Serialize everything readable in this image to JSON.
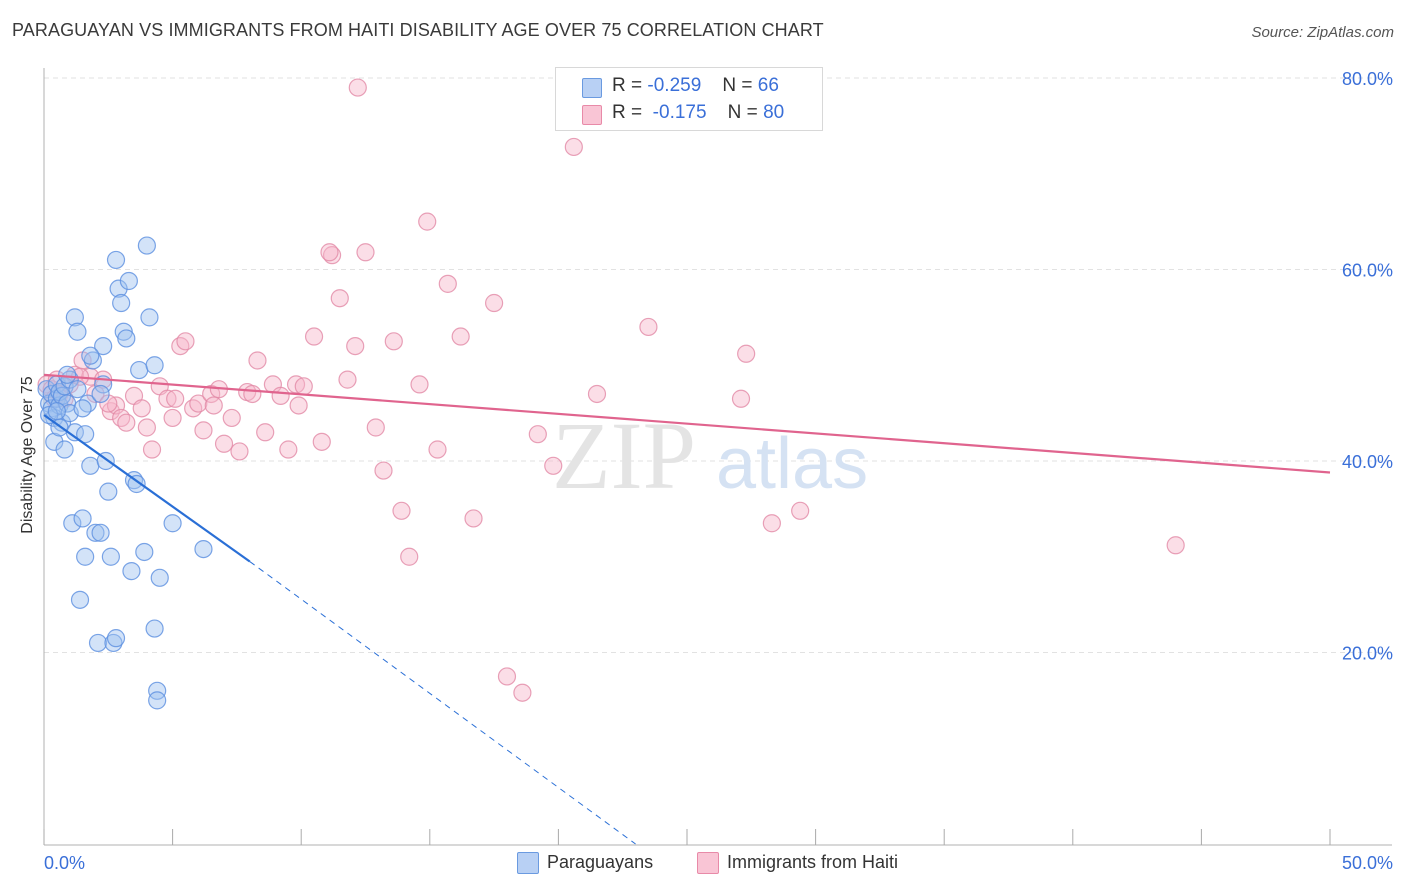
{
  "header": {
    "title": "PARAGUAYAN VS IMMIGRANTS FROM HAITI DISABILITY AGE OVER 75 CORRELATION CHART",
    "source": "Source: ZipAtlas.com"
  },
  "watermark": {
    "zip": "ZIP",
    "atlas": "atlas"
  },
  "legend": {
    "r_label": "R =",
    "n_label": "N =",
    "series": [
      {
        "name": "Paraguayans",
        "r": "-0.259",
        "n": "66",
        "fill": "#b8d0f4",
        "stroke": "#6a9ae0"
      },
      {
        "name": "Immigrants from Haiti",
        "r": "-0.175",
        "n": "80",
        "fill": "#f9c5d5",
        "stroke": "#e88aa8"
      }
    ]
  },
  "colors": {
    "blue_point_fill": "#9ec1f0",
    "blue_point_stroke": "#5b8fe0",
    "blue_line": "#2a6fd6",
    "pink_point_fill": "#f6b6c9",
    "pink_point_stroke": "#e28aa6",
    "pink_line": "#e0648e",
    "grid": "#e2e2e2",
    "axis": "#999999",
    "tick_text": "#3a6fd8"
  },
  "chart_data": {
    "type": "scatter",
    "title": "PARAGUAYAN VS IMMIGRANTS FROM HAITI DISABILITY AGE OVER 75 CORRELATION CHART",
    "xlabel": "",
    "ylabel": "Disability Age Over 75",
    "xlim": [
      0,
      50
    ],
    "ylim": [
      0,
      82
    ],
    "x_tick_labels": [
      "0.0%",
      "50.0%"
    ],
    "y_ticks": [
      20,
      40,
      60,
      80
    ],
    "y_tick_labels": [
      "20.0%",
      "40.0%",
      "60.0%",
      "80.0%"
    ],
    "grid": true,
    "series": [
      {
        "name": "Paraguayans",
        "color": "blue",
        "points": [
          [
            0.1,
            47.5
          ],
          [
            0.2,
            46.0
          ],
          [
            0.3,
            47.0
          ],
          [
            0.3,
            45.5
          ],
          [
            0.4,
            42.0
          ],
          [
            0.4,
            44.5
          ],
          [
            0.5,
            46.5
          ],
          [
            0.5,
            48.0
          ],
          [
            0.6,
            45.8
          ],
          [
            0.6,
            47.2
          ],
          [
            0.7,
            44.0
          ],
          [
            0.7,
            46.8
          ],
          [
            0.8,
            41.2
          ],
          [
            0.8,
            47.8
          ],
          [
            0.9,
            46.0
          ],
          [
            1.0,
            45.0
          ],
          [
            1.0,
            48.5
          ],
          [
            1.1,
            33.5
          ],
          [
            1.2,
            55.0
          ],
          [
            1.2,
            43.0
          ],
          [
            1.3,
            53.5
          ],
          [
            1.4,
            25.5
          ],
          [
            1.5,
            34.0
          ],
          [
            1.6,
            42.8
          ],
          [
            1.7,
            46.0
          ],
          [
            1.8,
            39.5
          ],
          [
            1.9,
            50.5
          ],
          [
            2.0,
            32.5
          ],
          [
            2.1,
            21.0
          ],
          [
            2.2,
            32.5
          ],
          [
            2.3,
            52.0
          ],
          [
            2.4,
            40.0
          ],
          [
            2.5,
            36.8
          ],
          [
            2.6,
            30.0
          ],
          [
            2.7,
            21.0
          ],
          [
            2.8,
            21.5
          ],
          [
            2.9,
            58.0
          ],
          [
            3.0,
            56.5
          ],
          [
            3.1,
            53.5
          ],
          [
            3.2,
            52.8
          ],
          [
            3.4,
            28.5
          ],
          [
            3.5,
            38.0
          ],
          [
            3.6,
            37.6
          ],
          [
            3.7,
            49.5
          ],
          [
            3.9,
            30.5
          ],
          [
            4.1,
            55.0
          ],
          [
            4.3,
            22.5
          ],
          [
            4.5,
            27.8
          ],
          [
            4.0,
            62.5
          ],
          [
            2.8,
            61.0
          ],
          [
            3.3,
            58.8
          ],
          [
            2.3,
            48.0
          ],
          [
            1.8,
            51.0
          ],
          [
            0.9,
            49.0
          ],
          [
            1.5,
            45.5
          ],
          [
            0.6,
            43.5
          ],
          [
            2.2,
            47.0
          ],
          [
            1.3,
            47.5
          ],
          [
            0.2,
            44.8
          ],
          [
            4.3,
            50.0
          ],
          [
            4.4,
            16.0
          ],
          [
            4.4,
            15.0
          ],
          [
            5.0,
            33.5
          ],
          [
            6.2,
            30.8
          ],
          [
            0.5,
            45.2
          ],
          [
            1.6,
            30.0
          ]
        ],
        "trend": {
          "x": [
            0,
            8.0
          ],
          "y": [
            44.8,
            29.5
          ],
          "dashed_extension": {
            "x": [
              8.0,
              23.0
            ],
            "y": [
              29.5,
              0
            ]
          }
        }
      },
      {
        "name": "Immigrants from Haiti",
        "color": "pink",
        "points": [
          [
            0.1,
            48.0
          ],
          [
            0.3,
            47.5
          ],
          [
            0.4,
            46.5
          ],
          [
            0.5,
            48.5
          ],
          [
            0.6,
            47.0
          ],
          [
            0.8,
            46.5
          ],
          [
            1.0,
            48.0
          ],
          [
            1.2,
            49.0
          ],
          [
            1.5,
            50.5
          ],
          [
            1.8,
            48.8
          ],
          [
            2.0,
            47.0
          ],
          [
            2.3,
            48.5
          ],
          [
            2.6,
            45.2
          ],
          [
            2.8,
            45.8
          ],
          [
            3.0,
            44.5
          ],
          [
            3.2,
            44.0
          ],
          [
            3.5,
            46.8
          ],
          [
            3.8,
            45.5
          ],
          [
            4.0,
            43.5
          ],
          [
            4.2,
            41.2
          ],
          [
            4.5,
            47.8
          ],
          [
            4.8,
            46.5
          ],
          [
            5.1,
            46.5
          ],
          [
            5.3,
            52.0
          ],
          [
            5.5,
            52.5
          ],
          [
            5.8,
            45.5
          ],
          [
            6.0,
            46.0
          ],
          [
            6.2,
            43.2
          ],
          [
            6.5,
            47.0
          ],
          [
            6.8,
            47.5
          ],
          [
            7.0,
            41.8
          ],
          [
            7.3,
            44.5
          ],
          [
            7.6,
            41.0
          ],
          [
            7.9,
            47.2
          ],
          [
            8.1,
            47.0
          ],
          [
            8.3,
            50.5
          ],
          [
            8.6,
            43.0
          ],
          [
            8.9,
            48.0
          ],
          [
            9.2,
            46.8
          ],
          [
            9.5,
            41.2
          ],
          [
            9.8,
            48.0
          ],
          [
            10.1,
            47.8
          ],
          [
            10.5,
            53.0
          ],
          [
            10.8,
            42.0
          ],
          [
            11.2,
            61.5
          ],
          [
            11.5,
            57.0
          ],
          [
            11.8,
            48.5
          ],
          [
            12.1,
            52.0
          ],
          [
            12.5,
            61.8
          ],
          [
            12.9,
            43.5
          ],
          [
            13.2,
            39.0
          ],
          [
            13.6,
            52.5
          ],
          [
            13.9,
            34.8
          ],
          [
            14.2,
            30.0
          ],
          [
            14.6,
            48.0
          ],
          [
            14.9,
            65.0
          ],
          [
            15.3,
            41.2
          ],
          [
            15.7,
            58.5
          ],
          [
            16.2,
            53.0
          ],
          [
            16.7,
            34.0
          ],
          [
            17.5,
            56.5
          ],
          [
            18.0,
            17.5
          ],
          [
            18.6,
            15.8
          ],
          [
            19.2,
            42.8
          ],
          [
            19.8,
            39.5
          ],
          [
            20.6,
            72.8
          ],
          [
            21.5,
            47.0
          ],
          [
            23.5,
            54.0
          ],
          [
            27.1,
            46.5
          ],
          [
            27.3,
            51.2
          ],
          [
            28.3,
            33.5
          ],
          [
            29.4,
            34.8
          ],
          [
            44.0,
            31.2
          ],
          [
            11.1,
            61.8
          ],
          [
            12.2,
            79.0
          ],
          [
            9.9,
            45.8
          ],
          [
            2.5,
            46.0
          ],
          [
            5.0,
            44.5
          ],
          [
            6.6,
            45.8
          ],
          [
            1.4,
            48.8
          ]
        ],
        "trend": {
          "x": [
            0,
            50
          ],
          "y": [
            49.0,
            38.8
          ]
        }
      }
    ]
  }
}
